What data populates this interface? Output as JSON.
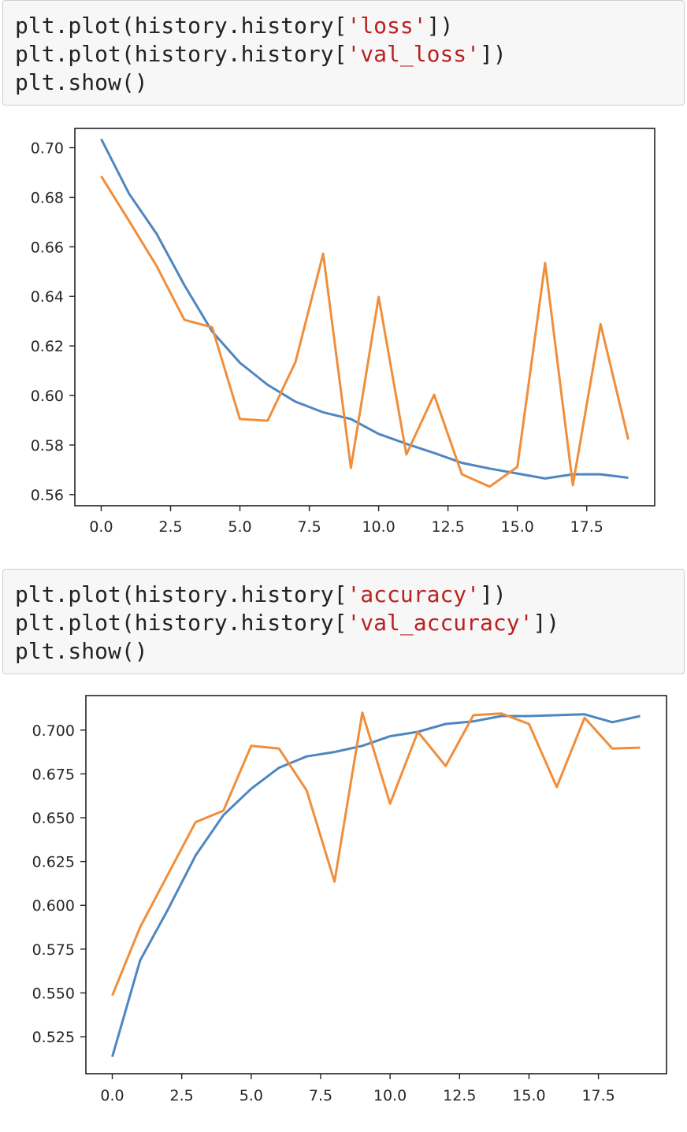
{
  "cells": [
    {
      "lines": [
        {
          "pre": "plt.plot(history.history[",
          "str": "'loss'",
          "post": "])"
        },
        {
          "pre": "plt.plot(history.history[",
          "str": "'val_loss'",
          "post": "])"
        },
        {
          "pre": "plt.show()",
          "str": "",
          "post": ""
        }
      ]
    },
    {
      "lines": [
        {
          "pre": "plt.plot(history.history[",
          "str": "'accuracy'",
          "post": "])"
        },
        {
          "pre": "plt.plot(history.history[",
          "str": "'val_accuracy'",
          "post": "])"
        },
        {
          "pre": "plt.show()",
          "str": "",
          "post": ""
        }
      ]
    }
  ],
  "colors": {
    "series1": "#4e86c0",
    "series2": "#f08e3b"
  },
  "chart_data": [
    {
      "type": "line",
      "title": "",
      "xlabel": "",
      "ylabel": "",
      "x": [
        0,
        1,
        2,
        3,
        4,
        5,
        6,
        7,
        8,
        9,
        10,
        11,
        12,
        13,
        14,
        15,
        16,
        17,
        18,
        19
      ],
      "xlim": [
        -0.95,
        19.95
      ],
      "ylim": [
        0.5555,
        0.7078
      ],
      "xticks": [
        0,
        2.5,
        5,
        7.5,
        10,
        12.5,
        15,
        17.5
      ],
      "xtick_labels": [
        "0.0",
        "2.5",
        "5.0",
        "7.5",
        "10.0",
        "12.5",
        "15.0",
        "17.5"
      ],
      "yticks": [
        0.56,
        0.58,
        0.6,
        0.62,
        0.64,
        0.66,
        0.68,
        0.7
      ],
      "ytick_labels": [
        "0.56",
        "0.58",
        "0.60",
        "0.62",
        "0.64",
        "0.66",
        "0.68",
        "0.70"
      ],
      "grid": false,
      "series": [
        {
          "values": [
            0.7035,
            0.6815,
            0.6652,
            0.6445,
            0.6258,
            0.6132,
            0.6043,
            0.5975,
            0.5932,
            0.5905,
            0.5845,
            0.5805,
            0.5768,
            0.5728,
            0.5705,
            0.5685,
            0.5665,
            0.5682,
            0.5682,
            0.5668
          ]
        },
        {
          "values": [
            0.6885,
            0.6705,
            0.6522,
            0.6305,
            0.6275,
            0.5905,
            0.5898,
            0.6135,
            0.6572,
            0.5708,
            0.6398,
            0.5762,
            0.6003,
            0.5682,
            0.5632,
            0.5712,
            0.6535,
            0.5638,
            0.6288,
            0.5822
          ]
        }
      ]
    },
    {
      "type": "line",
      "title": "",
      "xlabel": "",
      "ylabel": "",
      "x": [
        0,
        1,
        2,
        3,
        4,
        5,
        6,
        7,
        8,
        9,
        10,
        11,
        12,
        13,
        14,
        15,
        16,
        17,
        18,
        19
      ],
      "xlim": [
        -0.95,
        19.95
      ],
      "ylim": [
        0.5039,
        0.7197
      ],
      "xticks": [
        0,
        2.5,
        5,
        7.5,
        10,
        12.5,
        15,
        17.5
      ],
      "xtick_labels": [
        "0.0",
        "2.5",
        "5.0",
        "7.5",
        "10.0",
        "12.5",
        "15.0",
        "17.5"
      ],
      "yticks": [
        0.525,
        0.55,
        0.575,
        0.6,
        0.625,
        0.65,
        0.675,
        0.7
      ],
      "ytick_labels": [
        "0.525",
        "0.550",
        "0.575",
        "0.600",
        "0.625",
        "0.650",
        "0.675",
        "0.700"
      ],
      "grid": false,
      "series": [
        {
          "values": [
            0.5135,
            0.5685,
            0.5975,
            0.6285,
            0.6515,
            0.6665,
            0.6785,
            0.685,
            0.6875,
            0.691,
            0.6965,
            0.699,
            0.7035,
            0.705,
            0.708,
            0.708,
            0.7085,
            0.709,
            0.7045,
            0.708
          ]
        },
        {
          "values": [
            0.5485,
            0.5875,
            0.6175,
            0.6475,
            0.654,
            0.691,
            0.6895,
            0.6655,
            0.6135,
            0.71,
            0.658,
            0.699,
            0.6795,
            0.7085,
            0.7095,
            0.7035,
            0.6675,
            0.707,
            0.6895,
            0.69
          ]
        }
      ]
    }
  ]
}
